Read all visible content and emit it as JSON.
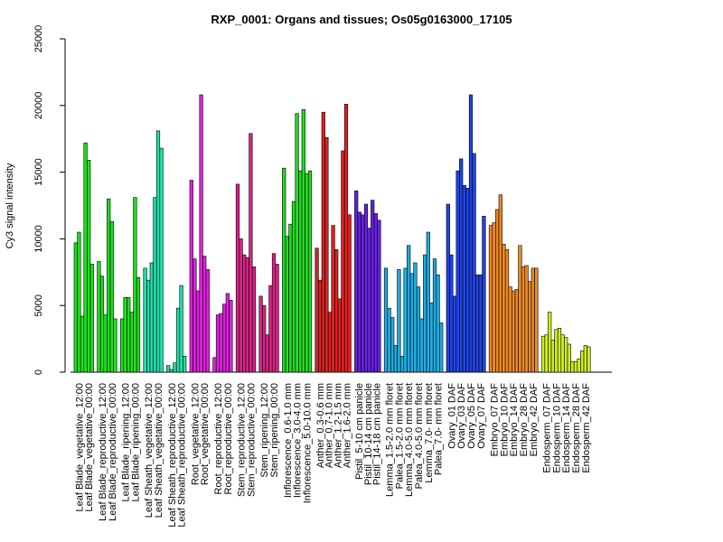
{
  "chart_data": {
    "type": "bar",
    "title": "RXP_0001: Organs and tissues; Os05g0163000_17105",
    "xlabel": "",
    "ylabel": "Cy3 signal intensity",
    "ylim": [
      0,
      25000
    ],
    "yticks": [
      0,
      5000,
      10000,
      15000,
      20000,
      25000
    ],
    "grid": false,
    "legend": "none",
    "groups": [
      {
        "name": "Leaf Blade_vegetative",
        "color": "#22dd22",
        "labels": [
          "Leaf Blade_vegetative_12:00",
          "Leaf Blade_vegetative_00:00"
        ],
        "values": [
          9700,
          10500,
          4200,
          17200,
          15900,
          8100
        ]
      },
      {
        "name": "Leaf Blade_reproductive",
        "color": "#22dd22",
        "labels": [
          "Leaf Blade_reproductive_12:00",
          "Leaf Blade_reproductive_00:00"
        ],
        "values": [
          8300,
          7200,
          4300,
          13000,
          11300,
          4000
        ]
      },
      {
        "name": "Leaf Blade_ripening",
        "color": "#22dd22",
        "labels": [
          "Leaf Blade_ripening_12:00",
          "Leaf Blade_ripening_00:00"
        ],
        "values": [
          4000,
          5600,
          5600,
          4500,
          13100,
          7100
        ]
      },
      {
        "name": "Leaf Sheath_vegetative",
        "color": "#22ddaa",
        "labels": [
          "Leaf Sheath_vegetative_12:00",
          "Leaf Sheath_vegetative_00:00"
        ],
        "values": [
          7800,
          6900,
          8200,
          13100,
          18100,
          16800
        ]
      },
      {
        "name": "Leaf Sheath_reproductive",
        "color": "#22ddaa",
        "labels": [
          "Leaf Sheath_reproductive_12:00",
          "Leaf Sheath_reproductive_00:00"
        ],
        "values": [
          500,
          200,
          700,
          4800,
          6500,
          1200
        ]
      },
      {
        "name": "Root_vegetative",
        "color": "#dd22dd",
        "labels": [
          "Root_vegetative_12:00",
          "Root_vegetative_00:00"
        ],
        "values": [
          14400,
          8500,
          6100,
          20800,
          8700,
          7700
        ]
      },
      {
        "name": "Root_reproductive",
        "color": "#dd22dd",
        "labels": [
          "Root_reproductive_12:00",
          "Root_reproductive_00:00"
        ],
        "values": [
          1100,
          4300,
          4400,
          5100,
          5900,
          5400
        ]
      },
      {
        "name": "Stem_reproductive",
        "color": "#dd2288",
        "labels": [
          "Stem_reproductive_12:00",
          "Stem_reproductive_00:00"
        ],
        "values": [
          14100,
          10000,
          8800,
          8600,
          17900,
          7900
        ]
      },
      {
        "name": "Stem_ripening",
        "color": "#dd2288",
        "labels": [
          "Stem_ripening_12:00",
          "Stem_ripening_00:00"
        ],
        "values": [
          5700,
          5000,
          2800,
          6500,
          8900,
          8100
        ]
      },
      {
        "name": "Inflorescence",
        "color": "#22dd22",
        "labels": [
          "Inflorescence_0.6-1.0 mm",
          "Inflorescence_3.0-4.0 mm",
          "Inflorescence_5.0-10.0 mm"
        ],
        "values": [
          15300,
          10200,
          11100,
          12800,
          19400,
          15100,
          19700,
          14900,
          15100
        ]
      },
      {
        "name": "Anther",
        "color": "#dd2222",
        "labels": [
          "Anther_0.3-0.6 mm",
          "Anther_0.7-1.0 mm",
          "Anther_1.2-1.5 mm",
          "Anther_1.6-2.0 mm"
        ],
        "values": [
          9300,
          6900,
          19500,
          17600,
          4500,
          11000,
          9200,
          5500,
          16600,
          20100,
          11800
        ]
      },
      {
        "name": "Pistil",
        "color": "#6622dd",
        "labels": [
          "Pistil_5-10 cm panicle",
          "Pistil_10-14 cm panicle",
          "Pistil_14-18 cm panicle"
        ],
        "values": [
          13600,
          12000,
          11800,
          12600,
          10800,
          12900,
          11900,
          11400
        ]
      },
      {
        "name": "Lemma_Palea",
        "color": "#22aadd",
        "labels": [
          "Lemma_1.5-2.0 mm floret",
          "Palea_1.5-2.0 mm floret",
          "Lemma_4.0-5.0 mm floret",
          "Palea_4.0-5.0 mm floret",
          "Lemma_7.0- mm floret",
          "Palea_7.0- mm floret"
        ],
        "values": [
          7800,
          4800,
          4100,
          2000,
          7700,
          1200,
          7800,
          9500,
          7400,
          8200,
          6400,
          4000,
          8800,
          10500,
          5200,
          8500,
          7300,
          3700
        ]
      },
      {
        "name": "Ovary",
        "color": "#2244dd",
        "labels": [
          "Ovary_01 DAF",
          "Ovary_03 DAF",
          "Ovary_05 DAF",
          "Ovary_07 DAF"
        ],
        "values": [
          12600,
          8800,
          5700,
          15100,
          16000,
          14000,
          13800,
          20800,
          16400,
          7300,
          7300,
          11700
        ]
      },
      {
        "name": "Embryo",
        "color": "#ee8822",
        "labels": [
          "Embryo_07 DAF",
          "Embryo_10 DAF",
          "Embryo_14 DAF",
          "Embryo_28 DAF",
          "Embryo_42 DAF"
        ],
        "values": [
          11000,
          11200,
          12200,
          13300,
          9600,
          9200,
          6400,
          6100,
          6200,
          9500,
          7900,
          8000,
          6800,
          7800,
          7800
        ]
      },
      {
        "name": "Endosperm",
        "color": "#ccee22",
        "labels": [
          "Endosperm_07 DAF",
          "Endosperm_10 DAF",
          "Endosperm_14 DAF",
          "Endosperm_28 DAF",
          "Endosperm_42 DAF"
        ],
        "values": [
          2700,
          2800,
          4500,
          2400,
          3200,
          3300,
          2800,
          2600,
          2100,
          800,
          800,
          1000,
          1600,
          2000,
          1900
        ]
      }
    ]
  }
}
